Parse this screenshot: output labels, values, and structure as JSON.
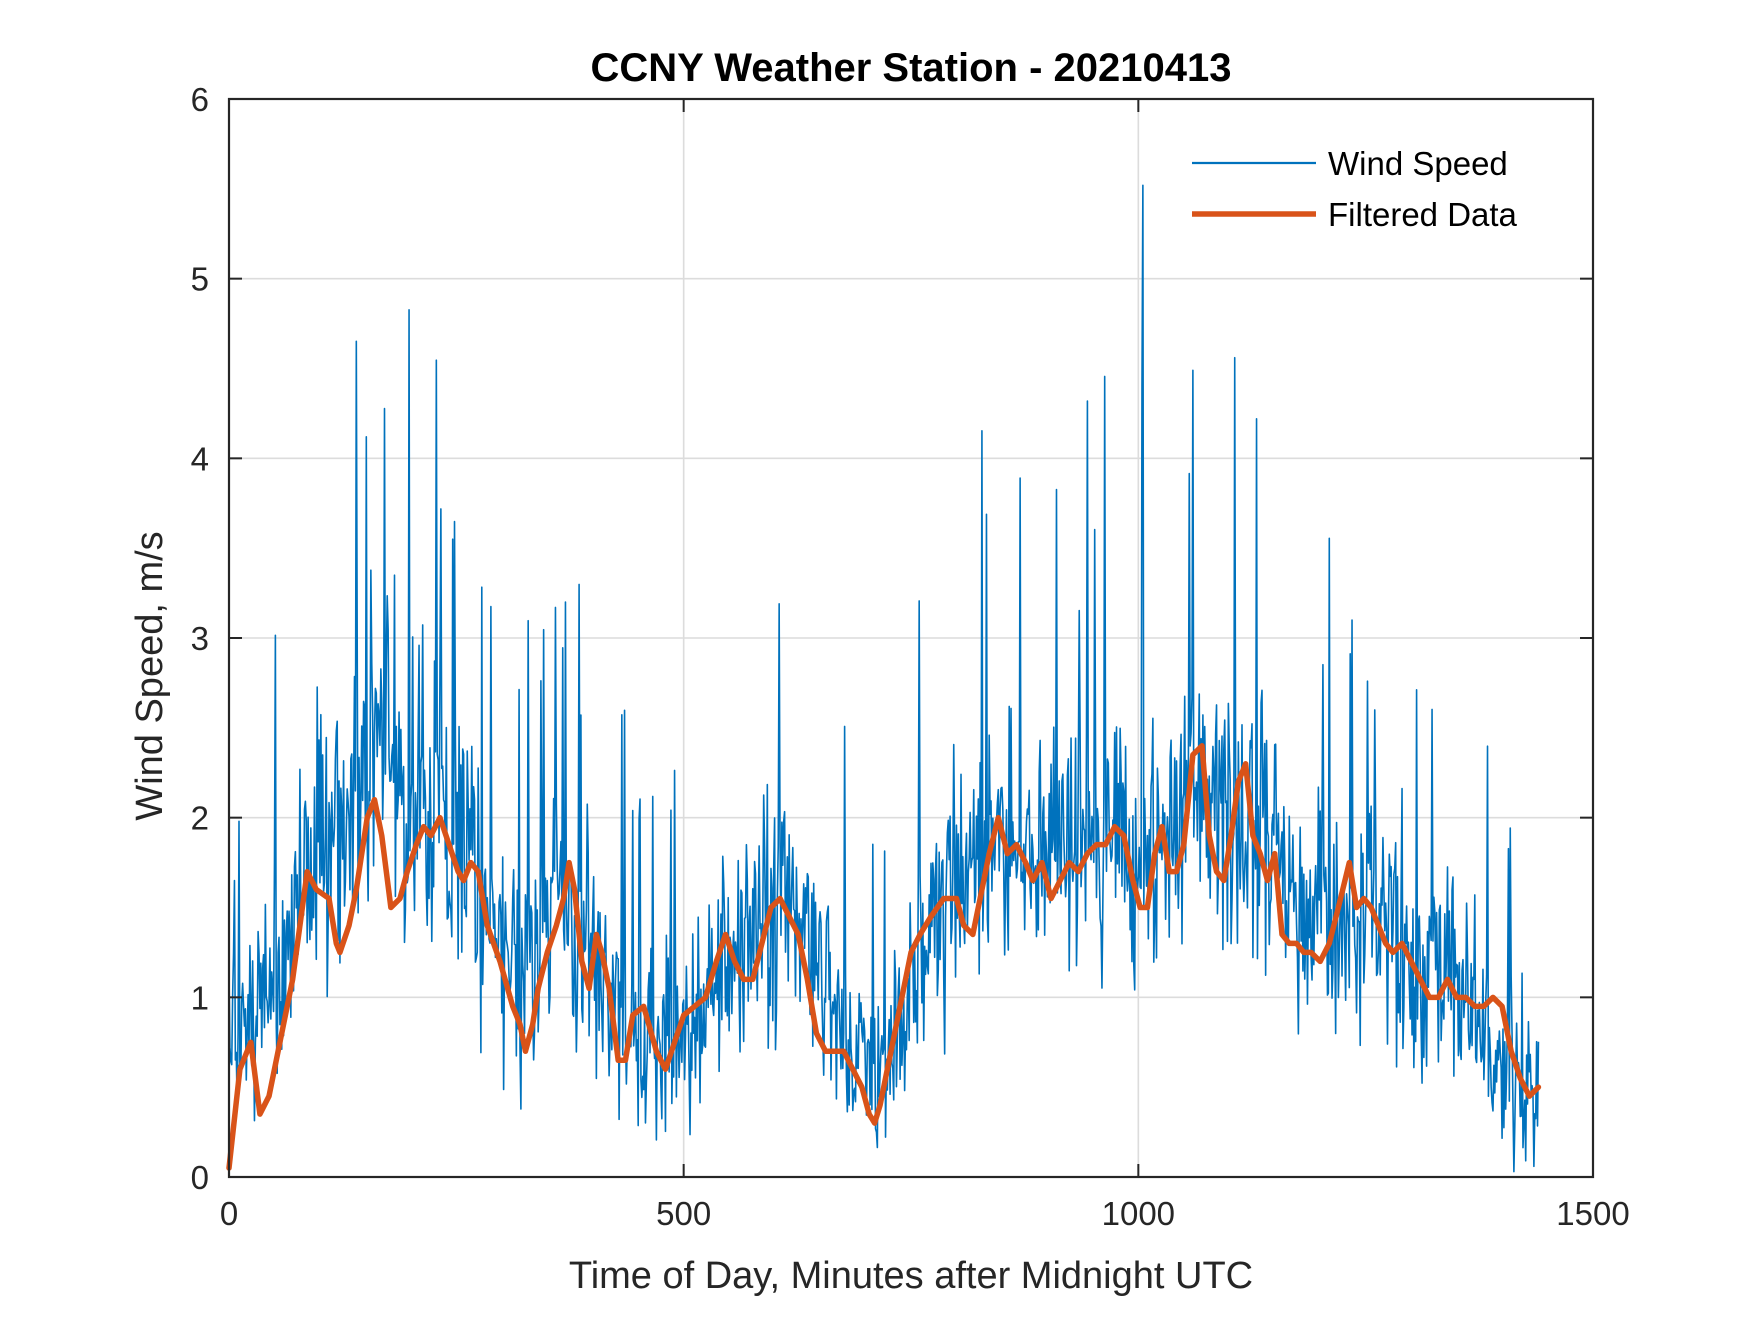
{
  "chart_data": {
    "type": "line",
    "title": "CCNY Weather Station - 20210413",
    "xlabel": "Time of Day, Minutes after Midnight UTC",
    "ylabel": "Wind Speed, m/s",
    "xlim": [
      0,
      1500
    ],
    "ylim": [
      0,
      6
    ],
    "xticks": [
      0,
      500,
      1000,
      1500
    ],
    "yticks": [
      0,
      1,
      2,
      3,
      4,
      5,
      6
    ],
    "xtick_labels": [
      "0",
      "500",
      "1000",
      "1500"
    ],
    "ytick_labels": [
      "0",
      "1",
      "2",
      "3",
      "4",
      "5",
      "6"
    ],
    "grid": true,
    "legend_position": "top-right",
    "series": [
      {
        "name": "Wind Speed",
        "color": "#0072BD",
        "style": "thin-noisy",
        "x_range": [
          0,
          1440
        ],
        "sample_step": 1,
        "noise_amplitude": 0.75,
        "spikes": [
          [
            6,
            1.65
          ],
          [
            11,
            1.98
          ],
          [
            151,
            4.12
          ],
          [
            182,
            3.35
          ],
          [
            246,
            3.55
          ],
          [
            359,
            3.17
          ],
          [
            605,
            3.19
          ],
          [
            870,
            3.89
          ],
          [
            1005,
            5.52
          ],
          [
            1004,
            4.4
          ],
          [
            1060,
            4.49
          ],
          [
            1106,
            4.56
          ],
          [
            1130,
            4.22
          ],
          [
            1235,
            3.1
          ],
          [
            1260,
            2.6
          ],
          [
            1370,
            1.57
          ]
        ],
        "envelope": [
          [
            0,
            0.7
          ],
          [
            20,
            0.8
          ],
          [
            60,
            1.2
          ],
          [
            100,
            1.9
          ],
          [
            150,
            2.4
          ],
          [
            200,
            2.1
          ],
          [
            260,
            1.8
          ],
          [
            320,
            1.0
          ],
          [
            360,
            1.6
          ],
          [
            400,
            1.2
          ],
          [
            450,
            0.7
          ],
          [
            500,
            0.8
          ],
          [
            560,
            1.3
          ],
          [
            620,
            1.5
          ],
          [
            680,
            0.8
          ],
          [
            720,
            0.5
          ],
          [
            760,
            1.3
          ],
          [
            820,
            1.7
          ],
          [
            860,
            1.9
          ],
          [
            920,
            1.8
          ],
          [
            980,
            1.9
          ],
          [
            1010,
            1.6
          ],
          [
            1060,
            2.2
          ],
          [
            1100,
            1.9
          ],
          [
            1140,
            2.0
          ],
          [
            1180,
            1.4
          ],
          [
            1230,
            1.5
          ],
          [
            1300,
            1.3
          ],
          [
            1360,
            1.0
          ],
          [
            1400,
            0.6
          ],
          [
            1440,
            0.5
          ]
        ]
      },
      {
        "name": "Filtered Data",
        "color": "#D95319",
        "style": "thick",
        "x": [
          0,
          12,
          24,
          34,
          44,
          56,
          70,
          86,
          96,
          110,
          118,
          122,
          132,
          140,
          146,
          152,
          160,
          168,
          178,
          188,
          196,
          206,
          214,
          222,
          232,
          242,
          252,
          258,
          266,
          274,
          284,
          298,
          312,
          320,
          326,
          334,
          340,
          350,
          360,
          368,
          374,
          380,
          388,
          396,
          404,
          410,
          418,
          428,
          436,
          444,
          456,
          470,
          480,
          490,
          500,
          512,
          524,
          536,
          546,
          556,
          566,
          576,
          586,
          596,
          606,
          616,
          626,
          636,
          646,
          656,
          666,
          676,
          686,
          696,
          704,
          710,
          716,
          722,
          730,
          740,
          750,
          760,
          772,
          786,
          800,
          808,
          818,
          826,
          836,
          846,
          856,
          866,
          876,
          884,
          894,
          904,
          914,
          924,
          934,
          944,
          954,
          964,
          974,
          984,
          994,
          1002,
          1010,
          1018,
          1026,
          1034,
          1042,
          1050,
          1060,
          1070,
          1078,
          1086,
          1094,
          1102,
          1110,
          1118,
          1126,
          1134,
          1142,
          1150,
          1158,
          1166,
          1174,
          1182,
          1190,
          1200,
          1210,
          1220,
          1232,
          1240,
          1248,
          1256,
          1264,
          1272,
          1280,
          1290,
          1300,
          1310,
          1320,
          1330,
          1340,
          1350,
          1360,
          1370,
          1380,
          1390,
          1400,
          1410,
          1420,
          1430,
          1440
        ],
        "values": [
          0.05,
          0.6,
          0.75,
          0.35,
          0.45,
          0.75,
          1.1,
          1.7,
          1.6,
          1.55,
          1.3,
          1.25,
          1.4,
          1.6,
          1.8,
          2.0,
          2.1,
          1.9,
          1.5,
          1.55,
          1.7,
          1.85,
          1.95,
          1.9,
          2.0,
          1.85,
          1.7,
          1.65,
          1.75,
          1.7,
          1.4,
          1.2,
          0.95,
          0.85,
          0.7,
          0.85,
          1.05,
          1.25,
          1.4,
          1.55,
          1.75,
          1.6,
          1.2,
          1.05,
          1.35,
          1.25,
          1.05,
          0.65,
          0.65,
          0.9,
          0.95,
          0.7,
          0.6,
          0.75,
          0.9,
          0.95,
          1.0,
          1.2,
          1.35,
          1.2,
          1.1,
          1.1,
          1.3,
          1.5,
          1.55,
          1.45,
          1.35,
          1.1,
          0.8,
          0.7,
          0.7,
          0.7,
          0.6,
          0.5,
          0.35,
          0.3,
          0.4,
          0.55,
          0.75,
          1.0,
          1.25,
          1.35,
          1.45,
          1.55,
          1.55,
          1.4,
          1.35,
          1.55,
          1.8,
          2.0,
          1.8,
          1.85,
          1.75,
          1.65,
          1.75,
          1.55,
          1.65,
          1.75,
          1.7,
          1.8,
          1.85,
          1.85,
          1.95,
          1.9,
          1.65,
          1.5,
          1.5,
          1.8,
          1.95,
          1.7,
          1.7,
          1.85,
          2.35,
          2.4,
          1.9,
          1.7,
          1.65,
          1.9,
          2.2,
          2.3,
          1.9,
          1.8,
          1.65,
          1.8,
          1.35,
          1.3,
          1.3,
          1.25,
          1.25,
          1.2,
          1.3,
          1.5,
          1.75,
          1.5,
          1.55,
          1.5,
          1.4,
          1.3,
          1.25,
          1.3,
          1.2,
          1.1,
          1.0,
          1.0,
          1.1,
          1.0,
          1.0,
          0.95,
          0.95,
          1.0,
          0.95,
          0.7,
          0.55,
          0.45,
          0.5
        ]
      }
    ]
  }
}
